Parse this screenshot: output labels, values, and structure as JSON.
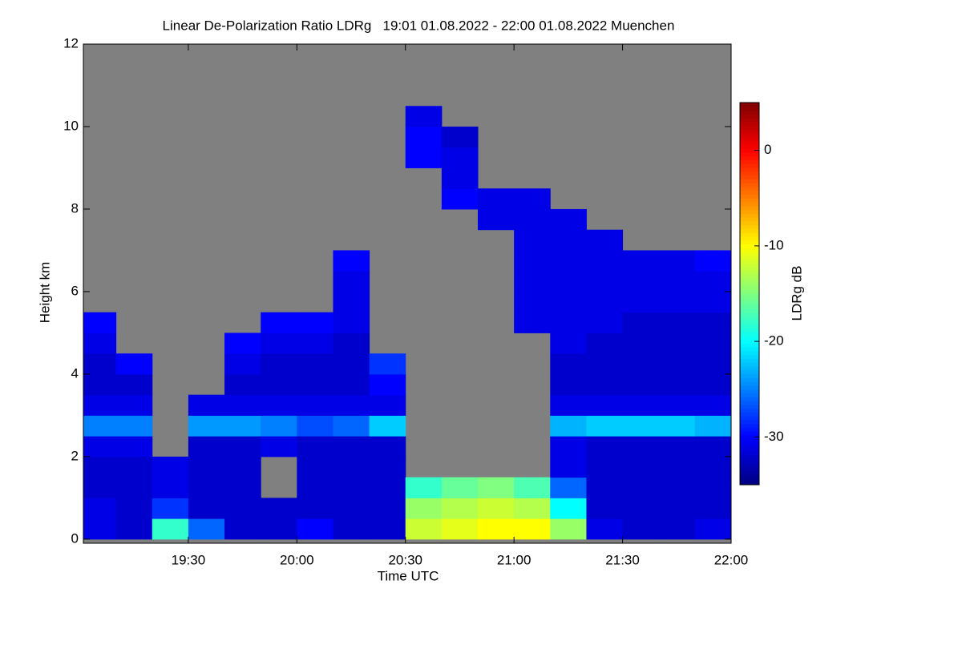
{
  "chart_data": {
    "type": "heatmap",
    "title": "Linear De-Polarization Ratio LDRg   19:01 01.08.2022 - 22:00 01.08.2022 Muenchen",
    "x_label": "Time UTC",
    "y_label": "Height km",
    "colorbar_label": "LDRg dB",
    "x": [
      19.0833,
      19.25,
      19.4167,
      19.5833,
      19.75,
      19.9167,
      20.0833,
      20.25,
      20.4167,
      20.5833,
      20.75,
      20.9167,
      21.0833,
      21.25,
      21.4167,
      21.5833,
      21.75,
      21.9167
    ],
    "y": [
      0.25,
      0.75,
      1.25,
      1.75,
      2.25,
      2.75,
      3.25,
      3.75,
      4.25,
      4.75,
      5.25,
      5.75,
      6.25,
      6.75,
      7.25,
      7.75,
      8.25,
      8.75,
      9.25,
      9.75,
      10.25,
      10.75,
      11.25,
      11.75
    ],
    "z": [
      [
        -31,
        -31,
        -32,
        -32,
        -31,
        -25,
        -31,
        -32,
        -32,
        -31,
        -30,
        null,
        null,
        null,
        null,
        null,
        null,
        null,
        null,
        null,
        null,
        null,
        null,
        null
      ],
      [
        -32,
        -32,
        -32,
        -32,
        -31,
        -25,
        -31,
        -32,
        -30,
        null,
        null,
        null,
        null,
        null,
        null,
        null,
        null,
        null,
        null,
        null,
        null,
        null,
        null,
        null
      ],
      [
        -18,
        -28,
        -31,
        -31,
        null,
        null,
        null,
        null,
        null,
        null,
        null,
        null,
        null,
        null,
        null,
        null,
        null,
        null,
        null,
        null,
        null,
        null,
        null,
        null
      ],
      [
        -26,
        -32,
        -32,
        -32,
        -32,
        -24,
        -31,
        null,
        null,
        null,
        null,
        null,
        null,
        null,
        null,
        null,
        null,
        null,
        null,
        null,
        null,
        null,
        null,
        null
      ],
      [
        -32,
        -32,
        -32,
        -32,
        -32,
        -24,
        -31,
        -32,
        -31,
        -30,
        null,
        null,
        null,
        null,
        null,
        null,
        null,
        null,
        null,
        null,
        null,
        null,
        null,
        null
      ],
      [
        -32,
        -32,
        null,
        null,
        -31,
        -25,
        -31,
        -32,
        -32,
        -31,
        -30,
        null,
        null,
        null,
        null,
        null,
        null,
        null,
        null,
        null,
        null,
        null,
        null,
        null
      ],
      [
        -30,
        -32,
        -32,
        -32,
        -32,
        -27,
        -31,
        -32,
        -32,
        -31,
        -30,
        null,
        null,
        null,
        null,
        null,
        null,
        null,
        null,
        null,
        null,
        null,
        null,
        null
      ],
      [
        -32,
        -32,
        -32,
        -32,
        -32,
        -26,
        -31,
        -32,
        -32,
        -32,
        -31,
        -31,
        -31,
        -30,
        null,
        null,
        null,
        null,
        null,
        null,
        null,
        null,
        null,
        null
      ],
      [
        -32,
        -32,
        -32,
        -32,
        -32,
        -22,
        -31,
        -30,
        -28,
        null,
        null,
        null,
        null,
        null,
        null,
        null,
        null,
        null,
        null,
        null,
        null,
        null,
        null,
        null
      ],
      [
        -12,
        -14,
        -18,
        null,
        null,
        null,
        null,
        null,
        null,
        null,
        null,
        null,
        null,
        null,
        null,
        null,
        null,
        null,
        -30,
        -30,
        -31,
        null,
        null,
        null
      ],
      [
        -11,
        -13,
        -16,
        null,
        null,
        null,
        null,
        null,
        null,
        null,
        null,
        null,
        null,
        null,
        null,
        null,
        -30,
        -31,
        -31,
        -32,
        null,
        null,
        null,
        null
      ],
      [
        -10,
        -12,
        -15,
        null,
        null,
        null,
        null,
        null,
        null,
        null,
        null,
        null,
        null,
        null,
        null,
        -31,
        -31,
        null,
        null,
        null,
        null,
        null,
        null,
        null
      ],
      [
        -10,
        -13,
        -17,
        null,
        null,
        null,
        null,
        null,
        null,
        null,
        -31,
        -31,
        -31,
        -31,
        -31,
        -31,
        -31,
        null,
        null,
        null,
        null,
        null,
        null,
        null
      ],
      [
        -14,
        -20,
        -26,
        -31,
        -31,
        -23,
        -31,
        -32,
        -32,
        -31,
        -31,
        -31,
        -31,
        -31,
        -31,
        -31,
        null,
        null,
        null,
        null,
        null,
        null,
        null,
        null
      ],
      [
        -31,
        -32,
        -32,
        -32,
        -32,
        -22,
        -31,
        -32,
        -32,
        -32,
        -31,
        -31,
        -31,
        -31,
        -31,
        null,
        null,
        null,
        null,
        null,
        null,
        null,
        null,
        null
      ],
      [
        -32,
        -32,
        -32,
        -32,
        -32,
        -22,
        -31,
        -32,
        -32,
        -32,
        -32,
        -31,
        -31,
        -31,
        null,
        null,
        null,
        null,
        null,
        null,
        null,
        null,
        null,
        null
      ],
      [
        -32,
        -32,
        -32,
        -32,
        -32,
        -22,
        -31,
        -32,
        -32,
        -32,
        -32,
        -31,
        -31,
        -31,
        null,
        null,
        null,
        null,
        null,
        null,
        null,
        null,
        null,
        null
      ],
      [
        -31,
        -32,
        -32,
        -32,
        -32,
        -23,
        -31,
        -32,
        -32,
        -32,
        -32,
        -31,
        -31,
        -30,
        null,
        null,
        null,
        null,
        null,
        null,
        null,
        null,
        null,
        null
      ]
    ],
    "xlim": [
      19.0167,
      22.0
    ],
    "xticks": [
      {
        "value": 19.5,
        "label": "19:30"
      },
      {
        "value": 20.0,
        "label": "20:00"
      },
      {
        "value": 20.5,
        "label": "20:30"
      },
      {
        "value": 21.0,
        "label": "21:00"
      },
      {
        "value": 21.5,
        "label": "21:30"
      },
      {
        "value": 22.0,
        "label": "22:00"
      }
    ],
    "ylim": [
      -0.1,
      12
    ],
    "yticks": [
      0,
      2,
      4,
      6,
      8,
      10,
      12
    ],
    "clim": [
      -35,
      5
    ],
    "cticks": [
      0,
      -10,
      -20,
      -30
    ],
    "colormap": "jet",
    "background": "#808080"
  }
}
